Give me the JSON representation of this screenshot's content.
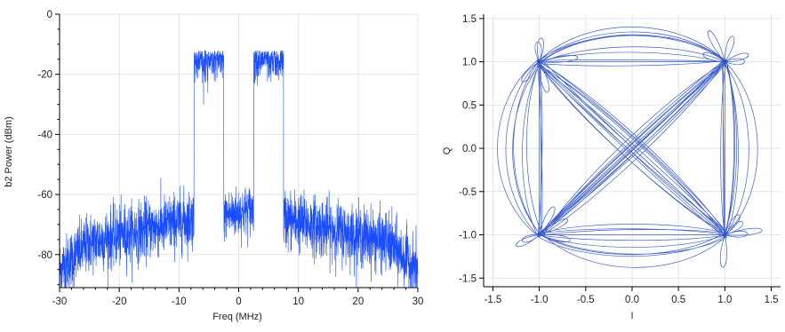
{
  "colors": {
    "trace": "#1a4dff",
    "iq_trace": "#2a4fc8",
    "axis": "#000000",
    "grid": "#e4e4e4"
  },
  "chart_data": [
    {
      "id": "spectrum",
      "type": "line",
      "title": "",
      "xlabel": "Freq (MHz)",
      "ylabel": "b2 Power (dBm)",
      "xlim": [
        -30,
        30
      ],
      "ylim": [
        -91,
        0
      ],
      "grid": true,
      "x_ticks": [
        -30,
        -20,
        -10,
        0,
        10,
        20,
        30
      ],
      "y_ticks": [
        0,
        -20,
        -40,
        -60,
        -80
      ],
      "x_tick_labels": [
        "-30",
        "-20",
        "-10",
        "0",
        "10",
        "20",
        "30"
      ],
      "y_tick_labels": [
        "0",
        "-20",
        "-40",
        "-60",
        "-80"
      ],
      "series": [
        {
          "segments": [
            {
              "x_range": [
                -30,
                -25
              ],
              "level_range": [
                -85,
                -76
              ],
              "noise_dB": 7
            },
            {
              "x_range": [
                -25,
                -7.5
              ],
              "level_range": [
                -76,
                -68
              ],
              "noise_dB": 7
            },
            {
              "x_range": [
                -7.5,
                -2.5
              ],
              "level": -12,
              "noise_dB": 5
            },
            {
              "x_range": [
                -2.5,
                2.5
              ],
              "level_range": [
                -67,
                -65
              ],
              "noise_dB": 6
            },
            {
              "x_range": [
                2.5,
                7.5
              ],
              "level": -12,
              "noise_dB": 5
            },
            {
              "x_range": [
                7.5,
                25
              ],
              "level_range": [
                -68,
                -76
              ],
              "noise_dB": 7
            },
            {
              "x_range": [
                25,
                30
              ],
              "level_range": [
                -76,
                -85
              ],
              "noise_dB": 7
            }
          ]
        }
      ]
    },
    {
      "id": "iq",
      "type": "line",
      "title": "",
      "xlabel": "I",
      "ylabel": "Q",
      "xlim": [
        -1.6,
        1.6
      ],
      "ylim": [
        -1.6,
        1.55
      ],
      "grid": true,
      "x_ticks": [
        -1.5,
        -1.0,
        -0.5,
        0.0,
        0.5,
        1.0,
        1.5
      ],
      "y_ticks": [
        1.5,
        1.0,
        0.5,
        0.0,
        -0.5,
        -1.0,
        -1.5
      ],
      "x_tick_labels": [
        "-1.5",
        "-1.0",
        "-0.5",
        "0.0",
        "0.5",
        "1.0",
        "1.5"
      ],
      "y_tick_labels": [
        "1.5",
        "1.0",
        "0.5",
        "0.0",
        "-0.5",
        "-1.0",
        "-1.5"
      ],
      "constellation_points": [
        [
          -1,
          1
        ],
        [
          1,
          1
        ],
        [
          -1,
          -1
        ],
        [
          1,
          -1
        ]
      ]
    }
  ]
}
